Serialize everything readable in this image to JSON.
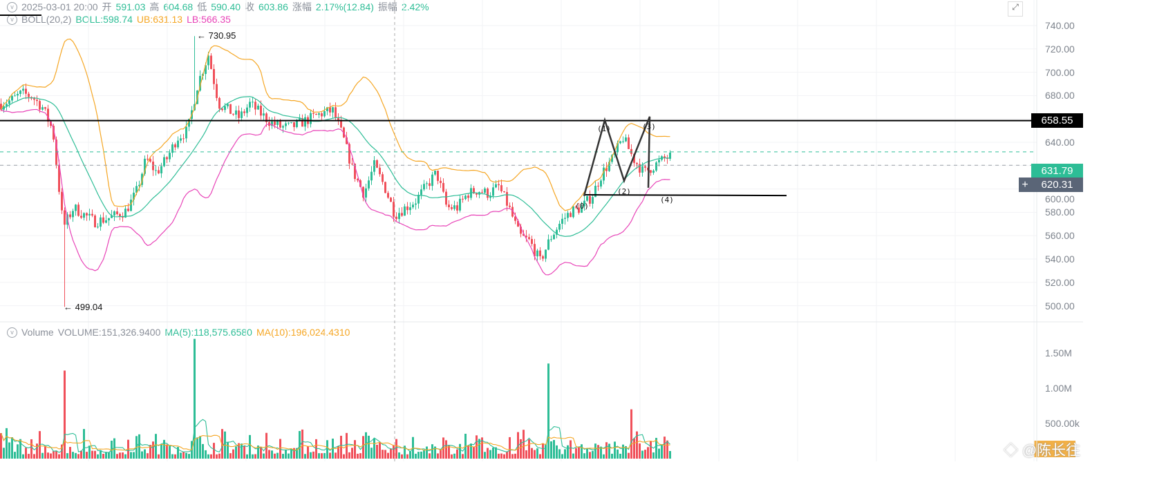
{
  "header": {
    "datetime": "2025-03-01 20:00",
    "open_label": "开",
    "open": "591.03",
    "high_label": "高",
    "high": "604.68",
    "low_label": "低",
    "low": "590.40",
    "close_label": "收",
    "close": "603.86",
    "change_label": "涨幅",
    "change": "2.17%(12.84)",
    "amp_label": "振幅",
    "amp": "2.42%"
  },
  "boll": {
    "name": "BOLL(20,2)",
    "boll": "BOLL:598.74",
    "ub": "UB:631.13",
    "lb": "LB:566.35"
  },
  "volume_legend": {
    "name": "Volume",
    "volume": "VOLUME:151,326.9400",
    "ma5": "MA(5):118,575.6580",
    "ma10": "MA(10):196,024.4310"
  },
  "price_axis": [
    "740.00",
    "720.00",
    "700.00",
    "680.00",
    "640.00",
    "600.00",
    "580.00",
    "560.00",
    "540.00",
    "520.00",
    "500.00"
  ],
  "volume_axis": [
    "1.50M",
    "1.00M",
    "500.00k"
  ],
  "tags": {
    "resistance": "658.55",
    "last": "631.79",
    "cursor": "620.31"
  },
  "annotations": {
    "high": "730.95",
    "low": "499.04",
    "waves": [
      "(0)",
      "(1)",
      "(2)",
      "(3)",
      "(4)"
    ]
  },
  "watermark": "@陈长往",
  "colors": {
    "up": "#2dbd96",
    "down": "#f0505a",
    "boll": "#2dbd96",
    "ub": "#f5a623",
    "lb": "#e844b8"
  },
  "chart_data": {
    "type": "candlestick",
    "ylim": [
      490,
      750
    ],
    "indicator": "BOLL(20,2)",
    "close": [
      673,
      676,
      682,
      679,
      670,
      650,
      567,
      584,
      578,
      572,
      574,
      577,
      581,
      596,
      626,
      614,
      626,
      644,
      650,
      691,
      715,
      673,
      667,
      661,
      673,
      665,
      657,
      653,
      653,
      657,
      661,
      665,
      667,
      644,
      614,
      596,
      620,
      602,
      578,
      584,
      590,
      602,
      614,
      584,
      584,
      596,
      599,
      596,
      602,
      584,
      560,
      555,
      538,
      558,
      572,
      581,
      584,
      594,
      614,
      626,
      644,
      626,
      614,
      620,
      626,
      629
    ],
    "extremes": {
      "high": 730.95,
      "low": 499.04
    },
    "volume_peaks": [
      {
        "at": "crash",
        "value": 1250000
      },
      {
        "at": "high",
        "value": 1700000
      },
      {
        "at": "breakout",
        "value": 1350000
      },
      {
        "at": "last",
        "value": 700000
      }
    ],
    "horizontal_lines": [
      658.55,
      595
    ],
    "wave_points": [
      594,
      659,
      607,
      662,
      601
    ]
  }
}
